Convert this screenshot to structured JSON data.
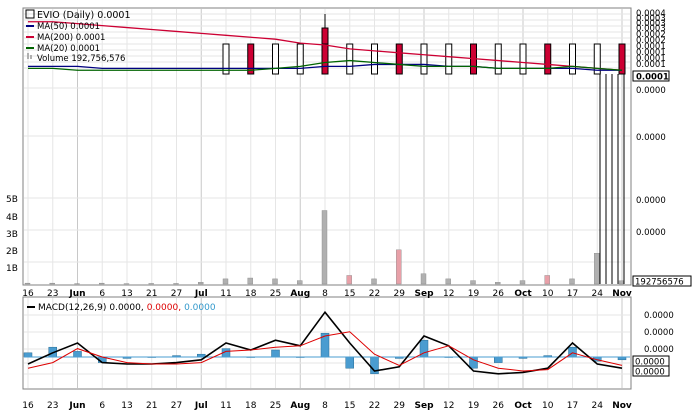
{
  "colors": {
    "background": "#ffffff",
    "grid": "#e6e6e6",
    "axis": "#808080",
    "price_candle": "#000000",
    "price_down": "#cc0033",
    "ma50": "#000080",
    "ma200": "#cc0033",
    "ma20": "#006400",
    "volume_up": "#b0b0b0",
    "volume_down": "#e8a0a8",
    "macd_line": "#000000",
    "signal_line": "#dd0000",
    "histogram": "#4a9cd0",
    "histogram_label": "#3399cc"
  },
  "price_panel": {
    "legend": {
      "ticker": "EVIO (Daily) 0.0001",
      "ma50": "MA(50) 0.0001",
      "ma200": "MA(200) 0.0001",
      "ma20": "MA(20) 0.0001",
      "volume": "Volume 192,756,576"
    },
    "right_labels": [
      "0.0004",
      "0.0003",
      "0.0003",
      "0.0003",
      "0.0002",
      "0.0002",
      "0.0001",
      "0.0001",
      "0.0001",
      "0.0001",
      "0.0000",
      "0.0000",
      "0.0000",
      "0.0000"
    ],
    "current_price_badge": "0.0001",
    "volume_axis_labels": [
      "5B",
      "4B",
      "3B",
      "2B",
      "1B"
    ],
    "current_volume_badge": "192756576"
  },
  "x_axis": {
    "labels": [
      "16",
      "23",
      "Jun",
      "6",
      "13",
      "21",
      "27",
      "Jul",
      "11",
      "18",
      "25",
      "Aug",
      "8",
      "15",
      "22",
      "29",
      "Sep",
      "12",
      "19",
      "26",
      "Oct",
      "10",
      "17",
      "24",
      "Nov"
    ],
    "month_labels": [
      "Jun",
      "Jul",
      "Aug",
      "Sep",
      "Oct",
      "Nov"
    ]
  },
  "macd_panel": {
    "legend_title": "MACD(12,26,9)",
    "macd_value": "0.0000,",
    "signal_value": "0.0000,",
    "histogram_value": "0.0000",
    "right_labels": [
      "0.0000",
      "0.0000",
      "0.0000",
      "0.0000",
      "0.0000"
    ],
    "badges": [
      "0.0000",
      "0.0000"
    ]
  },
  "chart_data": [
    {
      "type": "line",
      "title": "EVIO (Daily) 0.0001",
      "series": [
        {
          "name": "MA(200) 0.0001",
          "values": [
            0.00035,
            0.00035,
            0.00034,
            0.00033,
            0.00032,
            0.00031,
            0.0003,
            0.00029,
            0.00028,
            0.00027,
            0.00026,
            0.00024,
            0.00023,
            0.00021,
            0.0002,
            0.00019,
            0.00018,
            0.00017,
            0.00016,
            0.00015,
            0.00014,
            0.00013,
            0.00012,
            0.00011,
            0.0001
          ]
        },
        {
          "name": "MA(50) 0.0001",
          "values": [
            0.00012,
            0.00012,
            0.00012,
            0.00011,
            0.00011,
            0.00011,
            0.00011,
            0.00011,
            0.00011,
            0.00011,
            0.00011,
            0.00011,
            0.00012,
            0.00012,
            0.00013,
            0.00013,
            0.00013,
            0.00012,
            0.00012,
            0.00011,
            0.00011,
            0.00011,
            0.00011,
            0.0001,
            0.0001
          ]
        },
        {
          "name": "MA(20) 0.0001",
          "values": [
            0.00011,
            0.00011,
            0.0001,
            0.0001,
            0.0001,
            0.0001,
            0.0001,
            0.0001,
            0.0001,
            0.0001,
            0.00011,
            0.00012,
            0.00014,
            0.00015,
            0.00014,
            0.00013,
            0.00012,
            0.00012,
            0.00012,
            0.00011,
            0.00011,
            0.00011,
            0.00012,
            0.00011,
            0.0001
          ]
        }
      ],
      "x": [
        "16",
        "23",
        "Jun",
        "6",
        "13",
        "21",
        "27",
        "Jul",
        "11",
        "18",
        "25",
        "Aug",
        "8",
        "15",
        "22",
        "29",
        "Sep",
        "12",
        "19",
        "26",
        "Oct",
        "10",
        "17",
        "24",
        "Nov"
      ]
    },
    {
      "type": "bar",
      "title": "Volume 192,756,576",
      "categories": [
        "16",
        "23",
        "Jun",
        "6",
        "13",
        "21",
        "27",
        "Jul",
        "11",
        "18",
        "25",
        "Aug",
        "8",
        "15",
        "22",
        "29",
        "Sep",
        "12",
        "19",
        "26",
        "Oct",
        "10",
        "17",
        "24",
        "Nov"
      ],
      "values": [
        0.05,
        0.05,
        0.02,
        0.05,
        0.02,
        0.03,
        0.03,
        0.1,
        0.3,
        0.35,
        0.3,
        0.2,
        4.3,
        0.5,
        0.3,
        2.0,
        0.6,
        0.3,
        0.2,
        0.1,
        0.2,
        0.5,
        0.3,
        1.8,
        0.19
      ],
      "ylim": [
        0,
        5.5
      ],
      "yunit": "B"
    },
    {
      "type": "line",
      "title": "MACD(12,26,9)",
      "series": [
        {
          "name": "MACD(12,26,9)",
          "values": [
            -0.5,
            0.3,
            1.0,
            -0.4,
            -0.5,
            -0.5,
            -0.4,
            -0.2,
            1.0,
            0.5,
            1.2,
            0.8,
            3.2,
            1.0,
            -1.0,
            -0.7,
            1.5,
            0.8,
            -1.0,
            -1.2,
            -1.1,
            -0.8,
            1.0,
            -0.5,
            -0.8
          ]
        },
        {
          "name": "signal",
          "values": [
            -0.8,
            -0.4,
            0.6,
            0.0,
            -0.4,
            -0.5,
            -0.5,
            -0.4,
            0.4,
            0.5,
            0.7,
            0.8,
            1.5,
            1.8,
            0.2,
            -0.6,
            0.3,
            0.8,
            -0.2,
            -0.8,
            -1.0,
            -0.9,
            0.3,
            -0.2,
            -0.6
          ]
        },
        {
          "name": "histogram",
          "values": [
            0.3,
            0.7,
            0.4,
            -0.4,
            -0.1,
            0.0,
            0.1,
            0.2,
            0.6,
            0.0,
            0.5,
            0.0,
            1.7,
            -0.8,
            -1.2,
            -0.1,
            1.2,
            0.0,
            -0.8,
            -0.4,
            -0.1,
            0.1,
            0.7,
            -0.3,
            -0.2
          ]
        }
      ],
      "x": [
        "16",
        "23",
        "Jun",
        "6",
        "13",
        "21",
        "27",
        "Jul",
        "11",
        "18",
        "25",
        "Aug",
        "8",
        "15",
        "22",
        "29",
        "Sep",
        "12",
        "19",
        "26",
        "Oct",
        "10",
        "17",
        "24",
        "Nov"
      ]
    }
  ]
}
